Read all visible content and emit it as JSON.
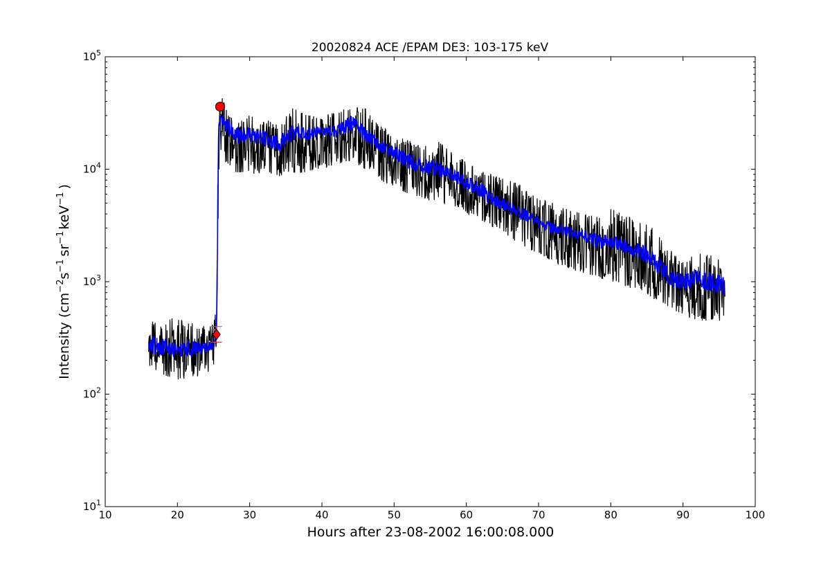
{
  "chart_data": {
    "type": "line",
    "title": "20020824 ACE /EPAM DE3: 103-175 keV",
    "xlabel": "Hours after 23-08-2002 16:00:08.000",
    "ylabel": {
      "prefix": "Intensity (cm",
      "exp1": "−2",
      "s": "s",
      "exp2": "−1",
      "sr": "sr",
      "exp3": "−1",
      "kev": "keV",
      "exp4": "−1",
      "suffix": ")"
    },
    "xlim": [
      10,
      100
    ],
    "ylim": [
      10,
      100000
    ],
    "yscale": "log",
    "grid": false,
    "xticks": [
      10,
      20,
      30,
      40,
      50,
      60,
      70,
      80,
      90,
      100
    ],
    "xtick_labels": [
      "10",
      "20",
      "30",
      "40",
      "50",
      "60",
      "70",
      "80",
      "90",
      "100"
    ],
    "yticks": [
      10,
      100,
      1000,
      10000,
      100000
    ],
    "ytick_labels": [
      {
        "base": "10",
        "exp": "1"
      },
      {
        "base": "10",
        "exp": "2"
      },
      {
        "base": "10",
        "exp": "3"
      },
      {
        "base": "10",
        "exp": "4"
      },
      {
        "base": "10",
        "exp": "5"
      }
    ],
    "series": [
      {
        "color": "#000000",
        "x": [
          16.0,
          18.0,
          20.0,
          22.0,
          24.0,
          25.0,
          25.4,
          25.7,
          26.0,
          27.0,
          28.0,
          30.0,
          32.0,
          34.0,
          36.0,
          38.0,
          40.0,
          42.0,
          44.0,
          46.0,
          48.0,
          50.0,
          52.0,
          54.0,
          56.0,
          58.0,
          60.0,
          62.0,
          64.0,
          66.0,
          68.0,
          70.0,
          72.0,
          74.0,
          76.0,
          78.0,
          80.0,
          82.0,
          84.0,
          86.0,
          88.0,
          90.0,
          92.0,
          94.0,
          95.8
        ],
        "lo": [
          170,
          150,
          130,
          140,
          150,
          180,
          220,
          8000,
          15000,
          10000,
          9000,
          9000,
          9000,
          8500,
          9000,
          9500,
          10000,
          11000,
          12000,
          10000,
          8000,
          7000,
          6000,
          5500,
          5000,
          4800,
          4000,
          3500,
          3000,
          2500,
          2000,
          1800,
          1500,
          1300,
          1200,
          1100,
          1000,
          900,
          850,
          700,
          600,
          500,
          450,
          450,
          450
        ],
        "hi": [
          450,
          460,
          480,
          430,
          400,
          420,
          600,
          45000,
          50000,
          30000,
          28000,
          30000,
          28000,
          25000,
          35000,
          30000,
          30000,
          32000,
          38000,
          35000,
          25000,
          20000,
          18000,
          16000,
          18000,
          14000,
          12000,
          10000,
          9000,
          8000,
          7000,
          5500,
          5000,
          4500,
          4000,
          3800,
          4500,
          4000,
          3500,
          3000,
          2000,
          1500,
          1800,
          1700,
          1500
        ]
      },
      {
        "color": "#0000ff",
        "x": [
          16.0,
          18.0,
          20.0,
          22.0,
          24.0,
          25.0,
          25.4,
          25.7,
          26.0,
          27.0,
          28.0,
          30.0,
          32.0,
          34.0,
          36.0,
          38.0,
          40.0,
          42.0,
          44.0,
          46.0,
          48.0,
          50.0,
          52.0,
          54.0,
          56.0,
          58.0,
          60.0,
          62.0,
          64.0,
          66.0,
          68.0,
          70.0,
          72.0,
          74.0,
          76.0,
          78.0,
          80.0,
          82.0,
          84.0,
          86.0,
          88.0,
          90.0,
          92.0,
          94.0,
          95.8
        ],
        "lo": [
          230,
          220,
          210,
          220,
          230,
          250,
          300,
          18000,
          24000,
          20000,
          17000,
          17000,
          16000,
          14000,
          18000,
          18000,
          20000,
          19000,
          22000,
          18000,
          14000,
          12000,
          10000,
          9000,
          8500,
          7500,
          6500,
          5500,
          4500,
          4000,
          3500,
          3000,
          2700,
          2500,
          2300,
          2000,
          2000,
          1800,
          1600,
          1300,
          900,
          800,
          900,
          800,
          750
        ],
        "hi": [
          330,
          320,
          310,
          300,
          290,
          310,
          380,
          30000,
          33000,
          28000,
          24000,
          24000,
          22000,
          20000,
          25000,
          24000,
          24000,
          25000,
          30000,
          25000,
          18000,
          16000,
          14000,
          12500,
          12000,
          10000,
          9000,
          7500,
          6000,
          5200,
          4500,
          3800,
          3400,
          3100,
          2900,
          2700,
          2600,
          2400,
          2200,
          1900,
          1300,
          1200,
          1300,
          1200,
          1100
        ]
      }
    ],
    "markers": [
      {
        "shape": "circle",
        "x": 25.9,
        "y": 36000,
        "color": "#ff0000"
      },
      {
        "shape": "diamond",
        "x": 25.4,
        "y": 340,
        "color": "#ff0000",
        "errorbar": [
          290,
          400
        ]
      }
    ]
  }
}
